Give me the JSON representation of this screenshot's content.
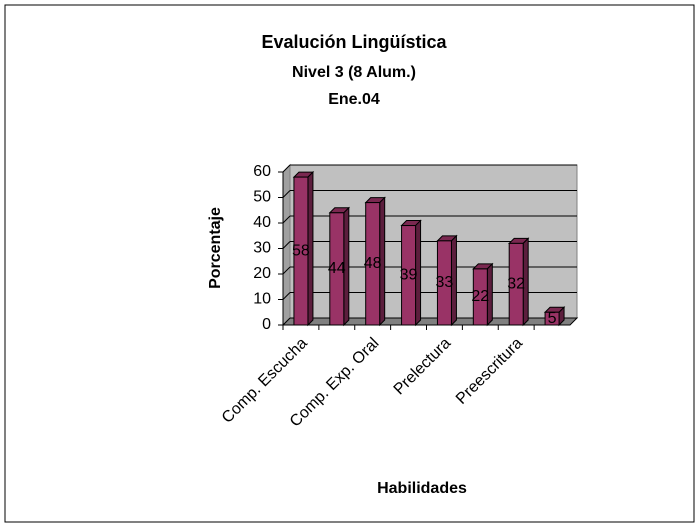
{
  "chart_data": {
    "type": "bar3d",
    "title": "Evalución Lingüística",
    "subtitle": "Nivel 3 (8 Alum.)",
    "date": "Ene.04",
    "ylabel": "Porcentaje",
    "xlabel": "Habilidades",
    "categories": [
      "Comp. Escucha",
      null,
      "Comp. Exp. Oral",
      null,
      "Prelectura",
      null,
      "Preescritura",
      null
    ],
    "values": [
      58,
      44,
      48,
      39,
      33,
      22,
      32,
      5
    ],
    "color": "#993366",
    "ylim": [
      0,
      60
    ],
    "yticks": [
      0,
      10,
      20,
      30,
      40,
      50,
      60
    ],
    "grid": true
  }
}
